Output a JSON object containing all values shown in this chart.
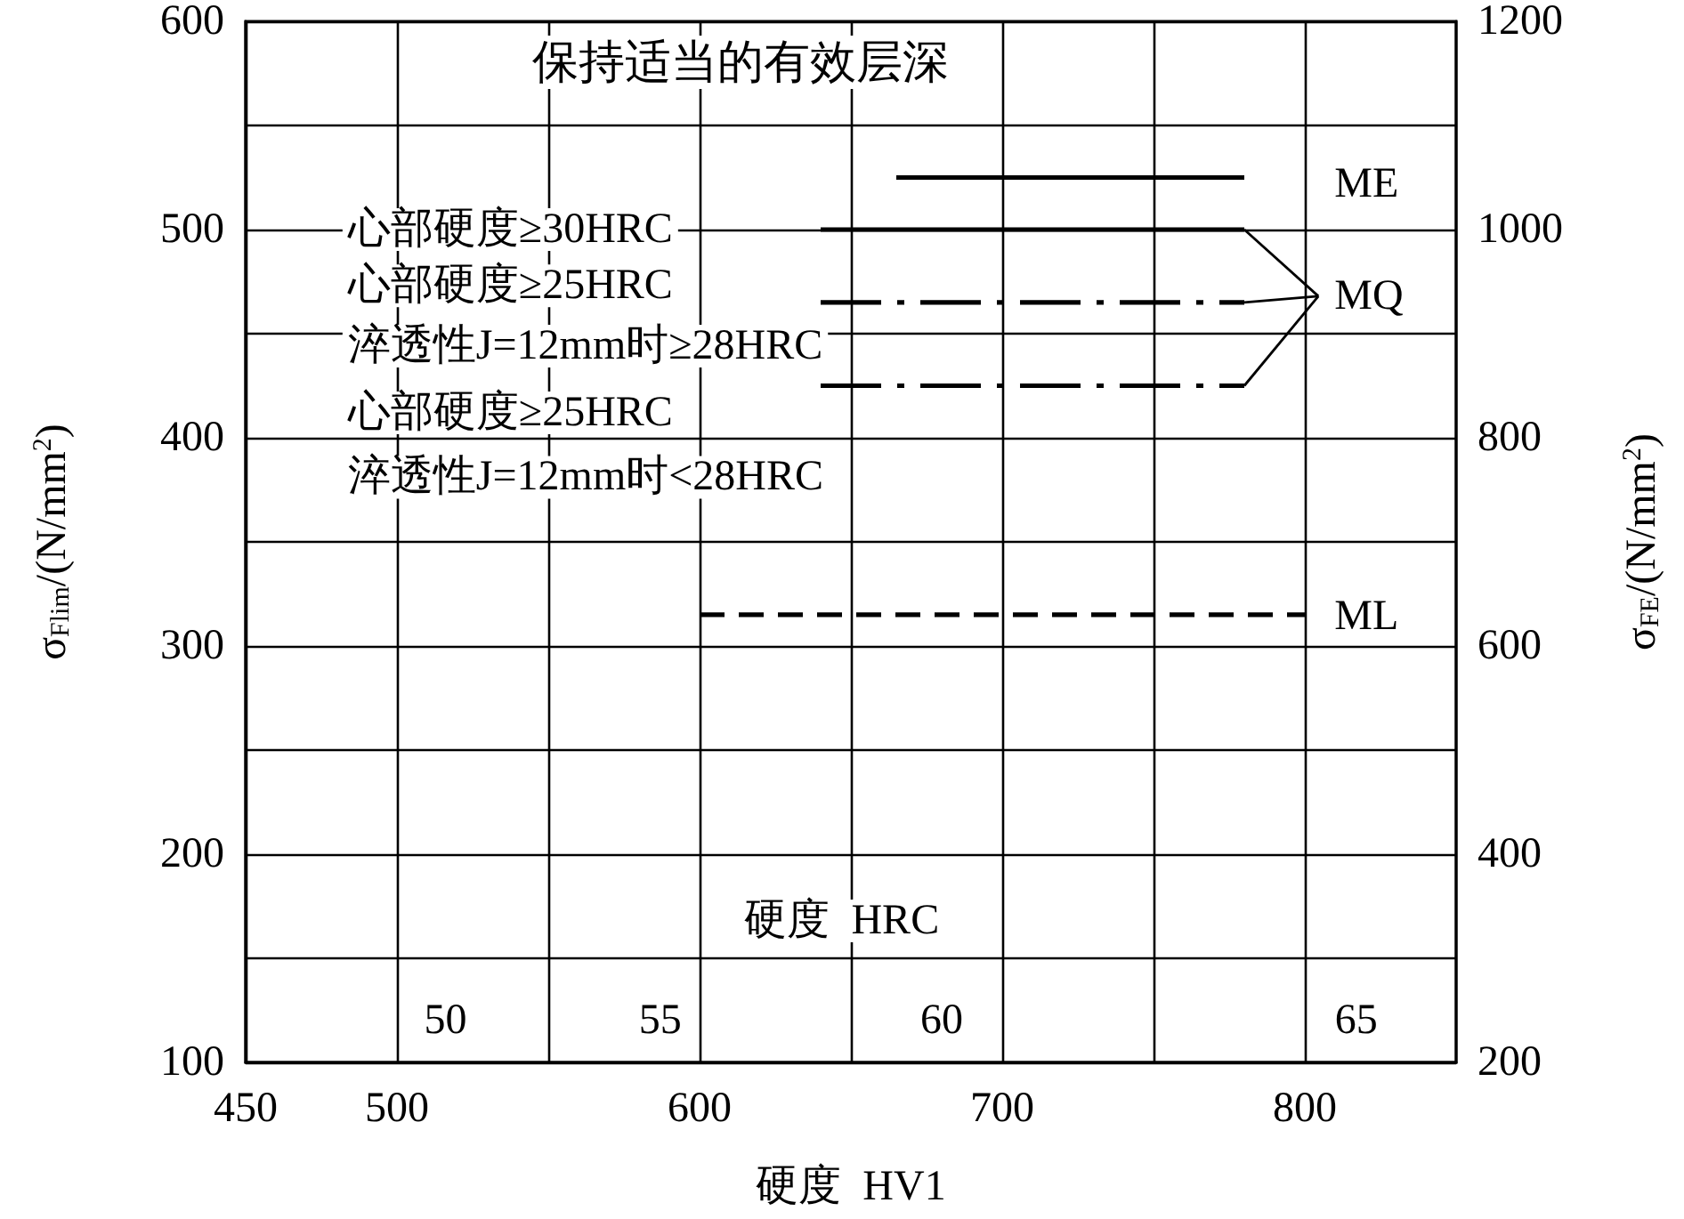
{
  "chart_data": {
    "type": "line",
    "title": "保持适当的有效层深",
    "xlabel": "硬度  HV1",
    "ylabel": "σ$_{Flim}$/(N/mm$^{2}$)",
    "y2label": "σ$_{FE}$/(N/mm$^{2}$)",
    "xlim": [
      450,
      850
    ],
    "xticks": [
      450,
      500,
      {
        "value": 550,
        "label": null
      },
      600,
      {
        "value": 650,
        "label": null
      },
      700,
      {
        "value": 750,
        "label": null
      },
      800
    ],
    "ylim": [
      100,
      600
    ],
    "yticks": [
      100,
      {
        "value": 150,
        "label": null
      },
      200,
      {
        "value": 250,
        "label": null
      },
      300,
      {
        "value": 350,
        "label": null
      },
      400,
      {
        "value": 450,
        "label": null
      },
      500,
      {
        "value": 550,
        "label": null
      },
      600
    ],
    "y2lim": [
      200,
      1200
    ],
    "y2ticks": [
      200,
      400,
      600,
      800,
      1000,
      1200
    ],
    "grid": true,
    "marker": "none",
    "series": [
      {
        "color": "#000000",
        "line_style": "solid",
        "x": [
          665,
          780
        ],
        "values": [
          525,
          525
        ]
      },
      {
        "color": "#000000",
        "line_style": "solid",
        "x": [
          640,
          780
        ],
        "values": [
          500,
          500
        ]
      },
      {
        "color": "#000000",
        "line_style": "dashdot",
        "x": [
          640,
          780
        ],
        "values": [
          465,
          465
        ]
      },
      {
        "color": "#000000",
        "line_style": "dashdot",
        "x": [
          640,
          780
        ],
        "values": [
          425,
          425
        ]
      },
      {
        "color": "#000000",
        "line_style": "dashed",
        "x": [
          600,
          800
        ],
        "values": [
          315,
          315
        ]
      }
    ],
    "annotations": [
      "ME",
      {
        "text": "MQ",
        "x": 780,
        "y": 465
      },
      "ML",
      "心部硬度≥30HRC",
      "心部硬度≥25HRC",
      "淬透性J=12mm时≥28HRC",
      "心部硬度≥25HRC",
      "淬透性J=12mm时<28HRC",
      "硬度  HRC",
      "50",
      "55",
      "60",
      "65"
    ]
  }
}
